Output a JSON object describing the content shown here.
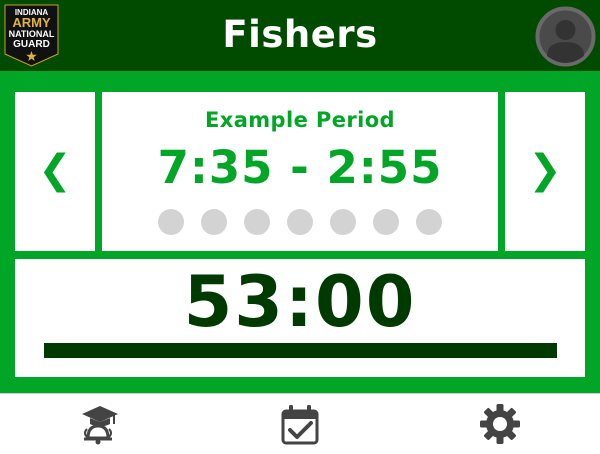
{
  "header": {
    "title": "Fishers",
    "logo": {
      "line1": "INDIANA",
      "line2": "ARMY",
      "line3": "NATIONAL",
      "line4": "GUARD"
    },
    "avatar_icon": "user-icon"
  },
  "schedule": {
    "prev_label": "❮",
    "next_label": "❯",
    "period_name": "Example Period",
    "period_time": "7:35 - 2:55",
    "dot_count": 7
  },
  "timer": {
    "countdown": "53:00",
    "progress_fraction": 1.0
  },
  "nav": {
    "items": [
      {
        "icon": "graduation-bell-icon"
      },
      {
        "icon": "calendar-check-icon"
      },
      {
        "icon": "gear-icon"
      }
    ]
  },
  "colors": {
    "header_bg": "#004b00",
    "accent": "#02a626",
    "dark": "#003a00",
    "dot": "#d3d3d3"
  }
}
